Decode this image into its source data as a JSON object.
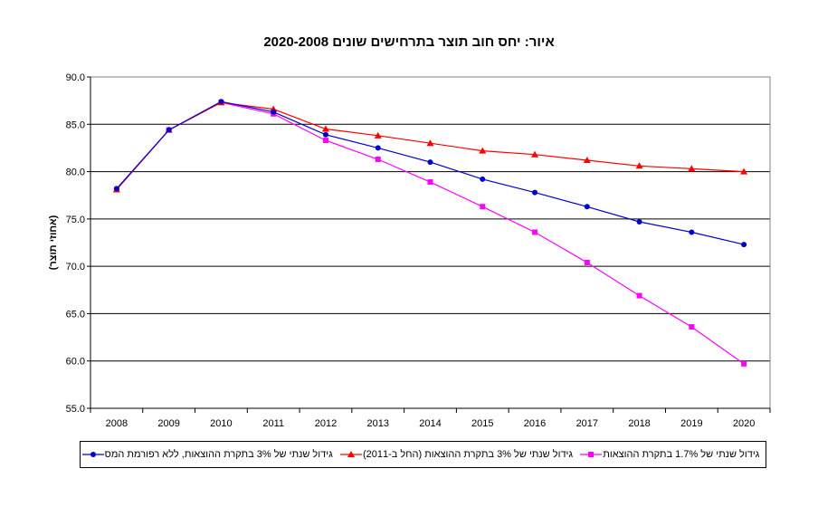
{
  "chart_data": {
    "type": "line",
    "title": "איור: יחס חוב תוצר בתרחישים שונים 2020-2008",
    "ylabel": "(אחוזי תוצר)",
    "xlabel": "",
    "ylim": [
      55.0,
      90.0
    ],
    "yticks": [
      "55.0",
      "60.0",
      "65.0",
      "70.0",
      "75.0",
      "80.0",
      "85.0",
      "90.0"
    ],
    "categories": [
      "2008",
      "2009",
      "2010",
      "2011",
      "2012",
      "2013",
      "2014",
      "2015",
      "2016",
      "2017",
      "2018",
      "2019",
      "2020"
    ],
    "legend_position": "bottom",
    "grid": "horizontal",
    "series": [
      {
        "name": "גידול שנתי של 1.7% בתקרת ההוצאות",
        "color": "#ff00ff",
        "marker": "square",
        "values": [
          78.1,
          84.4,
          87.3,
          86.1,
          83.3,
          81.3,
          78.9,
          76.3,
          73.6,
          70.4,
          66.9,
          63.6,
          59.7
        ]
      },
      {
        "name": "גידול שנתי של 3% בתקרת ההוצאות (החל ב-2011)",
        "color": "#ff0000",
        "marker": "triangle",
        "values": [
          78.1,
          84.4,
          87.3,
          86.6,
          84.5,
          83.8,
          83.0,
          82.2,
          81.8,
          81.2,
          80.6,
          80.3,
          80.0
        ]
      },
      {
        "name": "גידול שנתי של 3% בתקרת ההוצאות, ללא רפורמת המס",
        "color": "#0000cc",
        "marker": "circle",
        "values": [
          78.2,
          84.4,
          87.4,
          86.3,
          83.9,
          82.5,
          81.0,
          79.2,
          77.8,
          76.3,
          74.7,
          73.6,
          72.3
        ]
      }
    ]
  }
}
